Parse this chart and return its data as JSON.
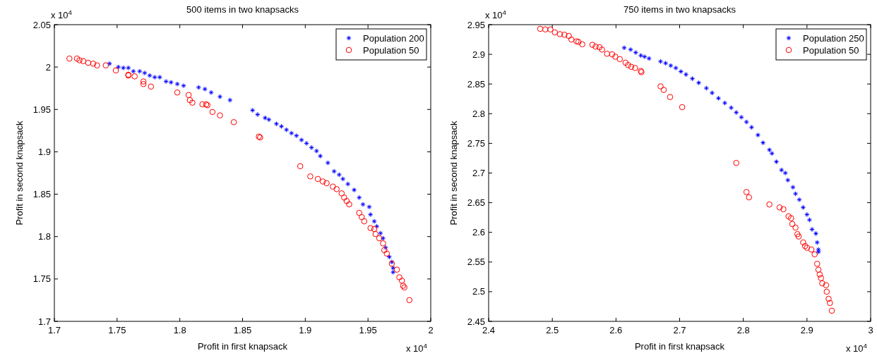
{
  "chart_data": [
    {
      "type": "scatter",
      "title": "500 items in two knapsacks",
      "xlabel": "Profit in first knapsack",
      "ylabel": "Profit in second knapsack",
      "annotations": [
        "x 10$^{4}$",
        "x 10$^{4}$"
      ],
      "xlim": [
        1.7,
        2
      ],
      "ylim": [
        1.7,
        2.05
      ],
      "xticks": [
        1.7,
        1.75,
        1.8,
        1.85,
        1.9,
        1.95,
        2
      ],
      "yticks": [
        1.7,
        1.75,
        1.8,
        1.85,
        1.9,
        1.95,
        2,
        2.05
      ],
      "legend": "top right",
      "grid": false,
      "series": [
        {
          "name": "Population 200",
          "color": "#0000ff",
          "marker": "cross",
          "x": [
            1.744,
            1.751,
            1.755,
            1.759,
            1.763,
            1.768,
            1.772,
            1.776,
            1.78,
            1.784,
            1.789,
            1.793,
            1.798,
            1.803,
            1.815,
            1.82,
            1.825,
            1.832,
            1.84,
            1.858,
            1.862,
            1.868,
            1.871,
            1.877,
            1.881,
            1.885,
            1.889,
            1.893,
            1.897,
            1.901,
            1.905,
            1.909,
            1.912,
            1.918,
            1.923,
            1.927,
            1.93,
            1.934,
            1.939,
            1.943,
            1.946,
            1.951,
            1.952,
            1.955,
            1.957,
            1.96,
            1.962,
            1.964,
            1.967,
            1.969,
            1.97,
            1.97
          ],
          "values": [
            2.004,
            2.0,
            1.999,
            1.999,
            1.995,
            1.995,
            1.993,
            1.99,
            1.988,
            1.988,
            1.983,
            1.982,
            1.98,
            1.978,
            1.976,
            1.974,
            1.97,
            1.965,
            1.961,
            1.949,
            1.944,
            1.94,
            1.938,
            1.933,
            1.93,
            1.926,
            1.922,
            1.919,
            1.914,
            1.91,
            1.905,
            1.901,
            1.895,
            1.887,
            1.877,
            1.873,
            1.868,
            1.862,
            1.855,
            1.846,
            1.838,
            1.835,
            1.826,
            1.818,
            1.812,
            1.804,
            1.798,
            1.787,
            1.776,
            1.77,
            1.763,
            1.758
          ]
        },
        {
          "name": "Population 50",
          "color": "#ff0000",
          "marker": "circle",
          "x": [
            1.712,
            1.718,
            1.72,
            1.723,
            1.727,
            1.731,
            1.734,
            1.741,
            1.749,
            1.759,
            1.759,
            1.764,
            1.771,
            1.771,
            1.777,
            1.798,
            1.807,
            1.808,
            1.81,
            1.818,
            1.821,
            1.822,
            1.826,
            1.832,
            1.843,
            1.863,
            1.864,
            1.896,
            1.904,
            1.91,
            1.914,
            1.917,
            1.922,
            1.925,
            1.929,
            1.931,
            1.933,
            1.935,
            1.943,
            1.945,
            1.947,
            1.952,
            1.955,
            1.956,
            1.959,
            1.962,
            1.963,
            1.965,
            1.969,
            1.973,
            1.975,
            1.977,
            1.978,
            1.979,
            1.983
          ],
          "values": [
            2.01,
            2.01,
            2.008,
            2.007,
            2.005,
            2.004,
            2.002,
            2.002,
            1.996,
            1.991,
            1.99,
            1.989,
            1.983,
            1.98,
            1.977,
            1.97,
            1.967,
            1.961,
            1.958,
            1.956,
            1.956,
            1.955,
            1.947,
            1.943,
            1.935,
            1.918,
            1.917,
            1.883,
            1.871,
            1.868,
            1.865,
            1.863,
            1.859,
            1.856,
            1.851,
            1.846,
            1.842,
            1.838,
            1.828,
            1.823,
            1.818,
            1.81,
            1.809,
            1.803,
            1.798,
            1.792,
            1.784,
            1.78,
            1.768,
            1.761,
            1.752,
            1.748,
            1.742,
            1.74,
            1.725
          ]
        }
      ]
    },
    {
      "type": "scatter",
      "title": "750 items in two knapsacks",
      "xlabel": "Profit in first knapsack",
      "ylabel": "Profit in second knapsack",
      "annotations": [
        "x 10$^{4}$",
        "x 10$^{4}$"
      ],
      "xlim": [
        2.4,
        3
      ],
      "ylim": [
        2.45,
        2.95
      ],
      "xticks": [
        2.4,
        2.5,
        2.6,
        2.7,
        2.8,
        2.9,
        3
      ],
      "yticks": [
        2.45,
        2.5,
        2.55,
        2.6,
        2.65,
        2.7,
        2.75,
        2.8,
        2.85,
        2.9,
        2.95
      ],
      "legend": "top right",
      "grid": false,
      "series": [
        {
          "name": "Population 250",
          "color": "#0000ff",
          "marker": "cross",
          "x": [
            2.613,
            2.623,
            2.631,
            2.639,
            2.645,
            2.652,
            2.67,
            2.678,
            2.686,
            2.694,
            2.702,
            2.71,
            2.72,
            2.73,
            2.742,
            2.751,
            2.761,
            2.771,
            2.781,
            2.789,
            2.797,
            2.805,
            2.813,
            2.823,
            2.831,
            2.841,
            2.845,
            2.852,
            2.86,
            2.866,
            2.87,
            2.878,
            2.882,
            2.888,
            2.894,
            2.9,
            2.904,
            2.908,
            2.914,
            2.916,
            2.918,
            2.918
          ],
          "values": [
            2.911,
            2.908,
            2.903,
            2.898,
            2.896,
            2.893,
            2.888,
            2.885,
            2.881,
            2.877,
            2.871,
            2.866,
            2.859,
            2.852,
            2.843,
            2.835,
            2.826,
            2.818,
            2.81,
            2.802,
            2.794,
            2.786,
            2.777,
            2.764,
            2.751,
            2.739,
            2.733,
            2.719,
            2.705,
            2.7,
            2.688,
            2.676,
            2.665,
            2.655,
            2.642,
            2.63,
            2.621,
            2.605,
            2.598,
            2.583,
            2.571,
            2.567
          ]
        },
        {
          "name": "Population 50",
          "color": "#ff0000",
          "marker": "circle",
          "x": [
            2.481,
            2.489,
            2.497,
            2.504,
            2.512,
            2.519,
            2.526,
            2.53,
            2.538,
            2.541,
            2.547,
            2.563,
            2.568,
            2.574,
            2.578,
            2.586,
            2.594,
            2.599,
            2.606,
            2.615,
            2.619,
            2.624,
            2.63,
            2.639,
            2.64,
            2.67,
            2.675,
            2.685,
            2.704,
            2.789,
            2.805,
            2.809,
            2.841,
            2.857,
            2.863,
            2.871,
            2.875,
            2.877,
            2.882,
            2.885,
            2.887,
            2.894,
            2.897,
            2.9,
            2.907,
            2.912,
            2.916,
            2.918,
            2.92,
            2.922,
            2.924,
            2.93,
            2.931,
            2.934,
            2.936,
            2.939
          ],
          "values": [
            2.943,
            2.942,
            2.942,
            2.937,
            2.934,
            2.933,
            2.931,
            2.925,
            2.922,
            2.921,
            2.917,
            2.916,
            2.913,
            2.912,
            2.908,
            2.901,
            2.9,
            2.896,
            2.892,
            2.886,
            2.882,
            2.879,
            2.877,
            2.872,
            2.87,
            2.846,
            2.84,
            2.828,
            2.811,
            2.717,
            2.668,
            2.659,
            2.647,
            2.642,
            2.639,
            2.627,
            2.624,
            2.614,
            2.608,
            2.597,
            2.593,
            2.583,
            2.577,
            2.574,
            2.571,
            2.563,
            2.547,
            2.537,
            2.529,
            2.523,
            2.514,
            2.511,
            2.5,
            2.488,
            2.481,
            2.468
          ]
        }
      ]
    }
  ]
}
